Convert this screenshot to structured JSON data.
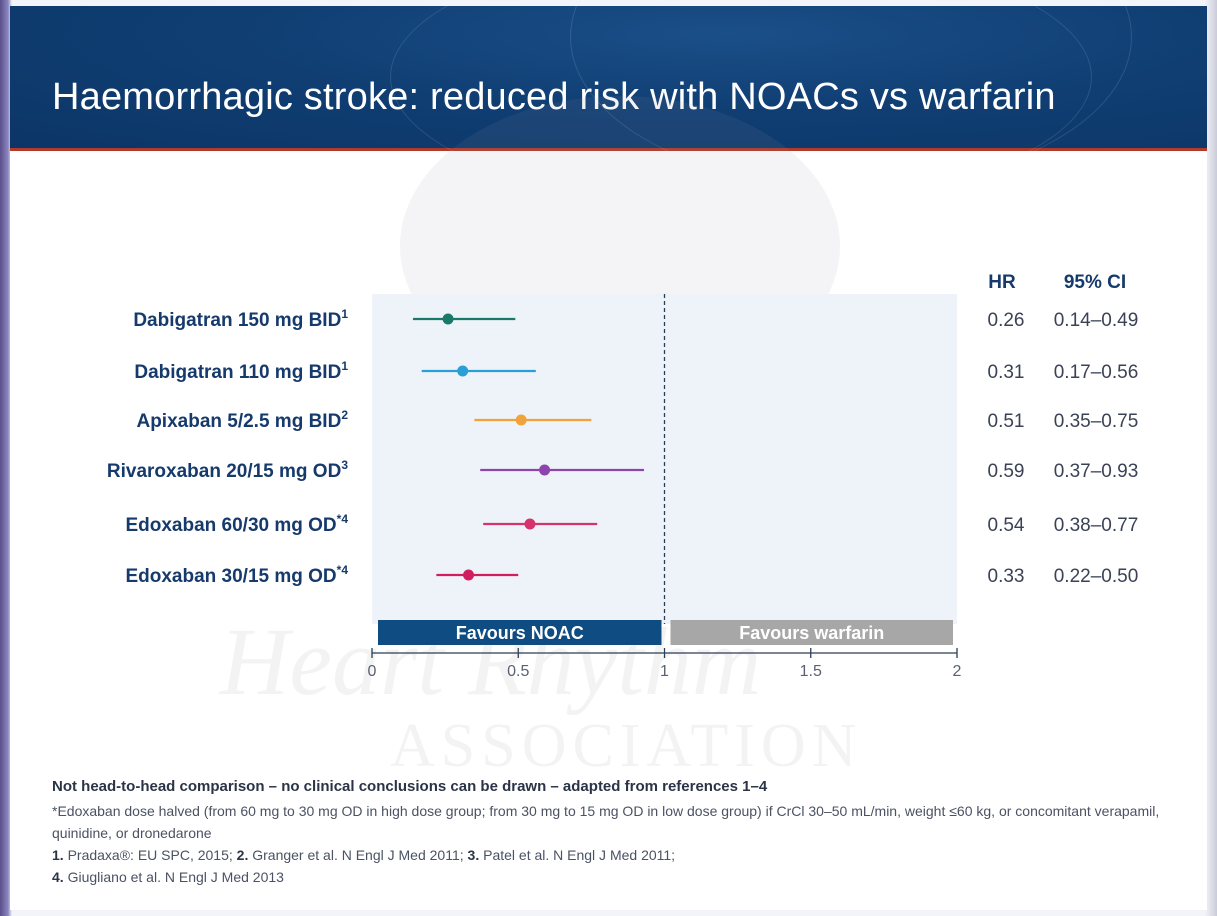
{
  "slide": {
    "title": "Haemorrhagic stroke: reduced risk with NOACs vs warfarin"
  },
  "colors": {
    "header_blue": "#0f3d70",
    "accent_red": "#b23a2c",
    "label_navy": "#163a6b",
    "favours_noac": "#0f4c81",
    "favours_warfarin": "#a7a7a7"
  },
  "chart_data": {
    "type": "forest",
    "column_headers": {
      "hr": "HR",
      "ci": "95% CI"
    },
    "reference_line": 1,
    "xlim": [
      0,
      2
    ],
    "x_ticks": [
      "0",
      "0.5",
      "1",
      "1.5",
      "2"
    ],
    "x_tick_values": [
      0,
      0.5,
      1,
      1.5,
      2
    ],
    "favours_left": "Favours NOAC",
    "favours_right": "Favours warfarin",
    "rows": [
      {
        "label": "Dabigatran 150 mg BID",
        "sup": "1",
        "hr": 0.26,
        "ci_low": 0.14,
        "ci_high": 0.49,
        "hr_text": "0.26",
        "ci_text": "0.14–0.49",
        "color": "#1a7a6a"
      },
      {
        "label": "Dabigatran 110 mg BID",
        "sup": "1",
        "hr": 0.31,
        "ci_low": 0.17,
        "ci_high": 0.56,
        "hr_text": "0.31",
        "ci_text": "0.17–0.56",
        "color": "#2a9fd6"
      },
      {
        "label": "Apixaban 5/2.5 mg BID",
        "sup": "2",
        "hr": 0.51,
        "ci_low": 0.35,
        "ci_high": 0.75,
        "hr_text": "0.51",
        "ci_text": "0.35–0.75",
        "color": "#f2a23a"
      },
      {
        "label": "Rivaroxaban 20/15 mg OD",
        "sup": "3",
        "hr": 0.59,
        "ci_low": 0.37,
        "ci_high": 0.93,
        "hr_text": "0.59",
        "ci_text": "0.37–0.93",
        "color": "#8e44ad"
      },
      {
        "label": "Edoxaban 60/30 mg OD",
        "sup": "*4",
        "hr": 0.54,
        "ci_low": 0.38,
        "ci_high": 0.77,
        "hr_text": "0.54",
        "ci_text": "0.38–0.77",
        "color": "#d6336c"
      },
      {
        "label": "Edoxaban 30/15 mg OD",
        "sup": "*4",
        "hr": 0.33,
        "ci_low": 0.22,
        "ci_high": 0.5,
        "hr_text": "0.33",
        "ci_text": "0.22–0.50",
        "color": "#d11f5e"
      }
    ]
  },
  "watermark": {
    "line1": "Heart Rhythm",
    "line2": "ASSOCIATION"
  },
  "footnotes": {
    "headline": "Not head-to-head comparison – no clinical conclusions can be drawn – adapted from references 1–4",
    "edoxaban_note": "*Edoxaban dose halved (from 60 mg to 30 mg OD in high dose group; from 30 mg to 15 mg OD in low dose group) if CrCl 30–50 mL/min, weight ≤60 kg, or concomitant verapamil, quinidine, or dronedarone",
    "ref1_num": "1.",
    "ref1": " Pradaxa®: EU SPC, 2015; ",
    "ref2_num": "2.",
    "ref2": " Granger et al. N Engl J Med 2011; ",
    "ref3_num": "3.",
    "ref3": " Patel et al. N Engl J Med 2011;",
    "ref4_num": "4.",
    "ref4": " Giugliano et al. N Engl J Med 2013"
  }
}
